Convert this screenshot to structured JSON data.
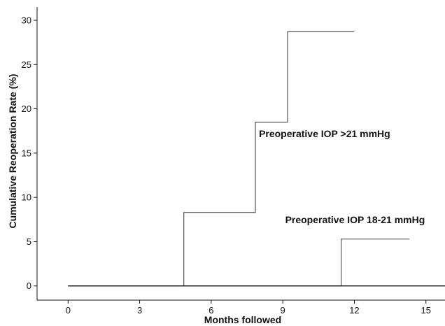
{
  "chart_data": {
    "type": "line",
    "step": true,
    "xlabel": "Months followed",
    "ylabel": "Cumulative Reoperation Rate (%)",
    "xlim": [
      -1.3,
      15.8
    ],
    "ylim": [
      -1.6,
      31.5
    ],
    "xticks": [
      0,
      3,
      6,
      9,
      12,
      15
    ],
    "yticks": [
      0,
      5,
      10,
      15,
      20,
      25,
      30
    ],
    "grid": false,
    "series": [
      {
        "name": "Preoperative IOP >21 mmHg",
        "x": [
          0,
          4.85,
          4.85,
          7.85,
          7.85,
          9.2,
          9.2,
          12.0
        ],
        "y": [
          0,
          0,
          8.3,
          8.3,
          18.5,
          18.5,
          28.7,
          28.7
        ],
        "color": "#555555"
      },
      {
        "name": "Preoperative IOP 18-21 mmHg",
        "x": [
          0,
          11.45,
          11.45,
          14.3
        ],
        "y": [
          0,
          0,
          5.3,
          5.3
        ],
        "color": "#555555"
      },
      {
        "name": "",
        "x": [
          0,
          15.8
        ],
        "y": [
          0,
          0
        ],
        "color": "#111111"
      }
    ],
    "annotations": [
      {
        "text": "Preoperative IOP >21 mmHg",
        "x": 8.0,
        "y": 16.8
      },
      {
        "text": "Preoperative IOP 18-21 mmHg",
        "x": 9.1,
        "y": 7.1
      }
    ]
  }
}
